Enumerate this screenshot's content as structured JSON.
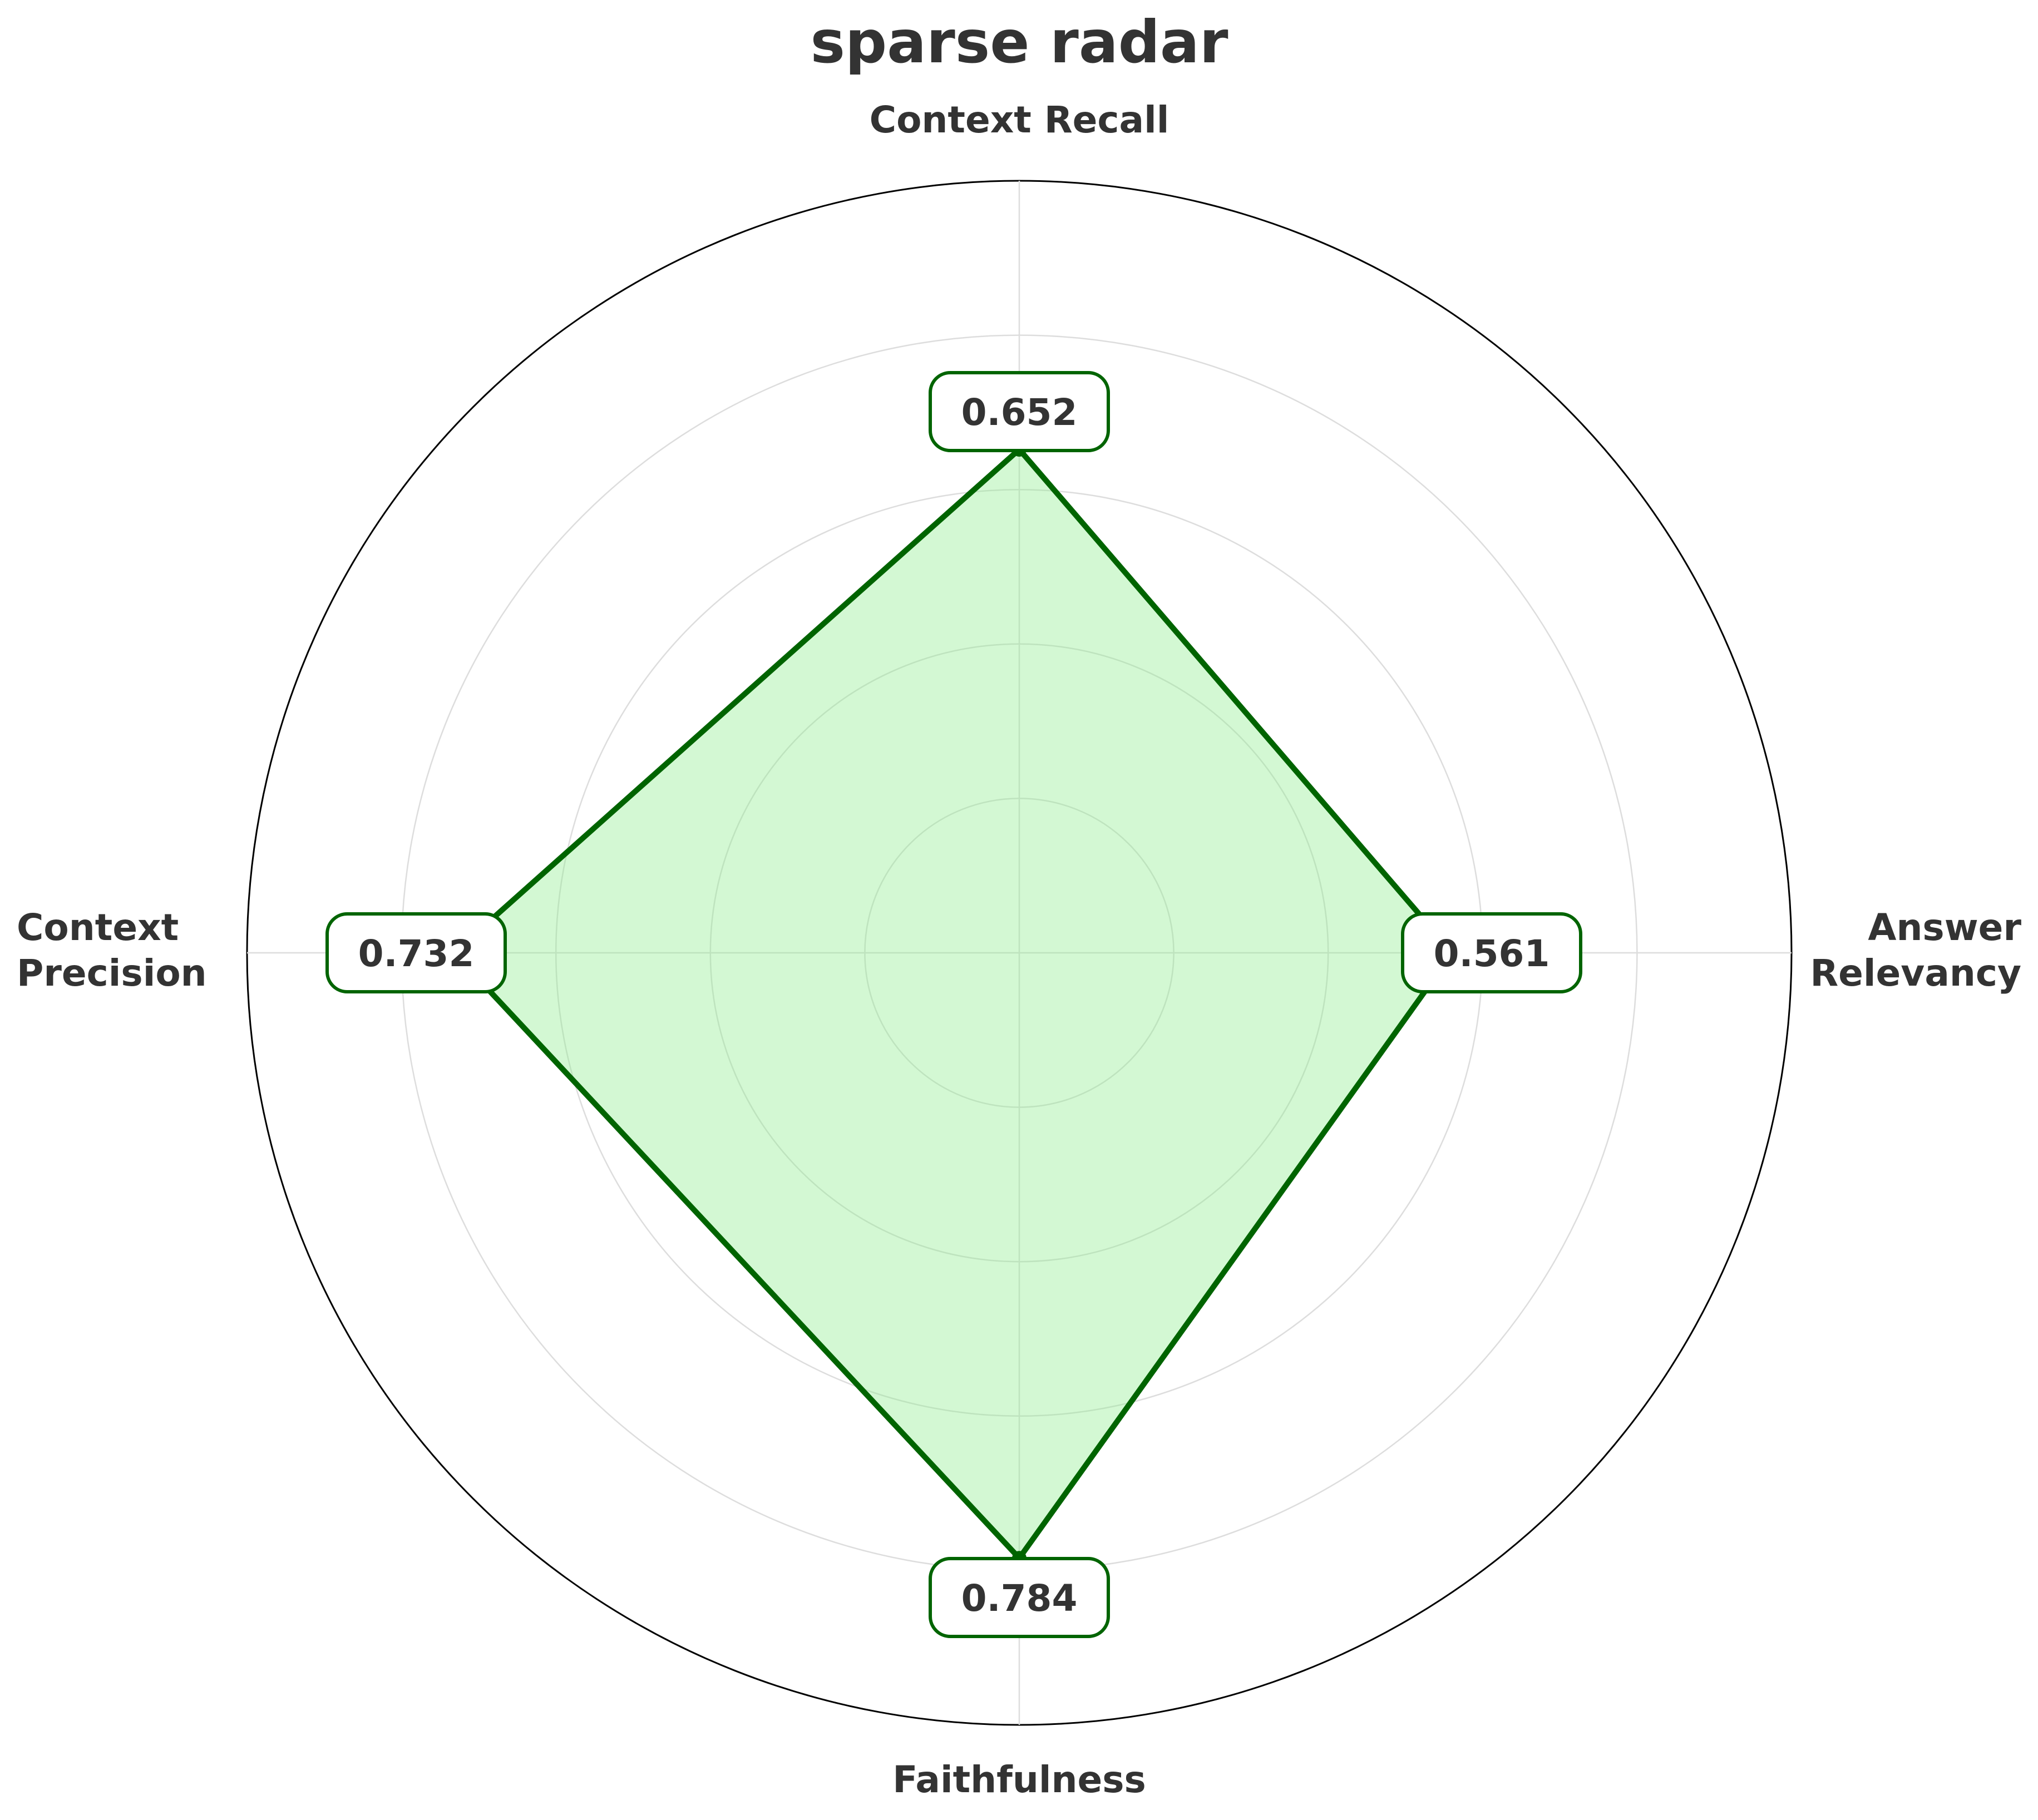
{
  "chart_data": {
    "type": "radar",
    "title": "sparse radar",
    "axes": [
      {
        "label_lines": [
          "Answer",
          "Relevancy"
        ],
        "value": 0.561,
        "value_label": "0.561"
      },
      {
        "label_lines": [
          "Context Recall"
        ],
        "value": 0.652,
        "value_label": "0.652"
      },
      {
        "label_lines": [
          "Context",
          "Precision"
        ],
        "value": 0.732,
        "value_label": "0.732"
      },
      {
        "label_lines": [
          "Faithfulness"
        ],
        "value": 0.784,
        "value_label": "0.784"
      }
    ],
    "rlim": [
      0,
      1
    ],
    "rings": [
      0.2,
      0.4,
      0.6,
      0.8,
      1.0
    ],
    "grid": true,
    "legend": "none"
  },
  "colors": {
    "line": "#006400",
    "fill": "#90ee90",
    "fill_opacity": 0.4,
    "grid": "#dddddd",
    "outer_ring": "#000000",
    "text": "#333333",
    "label_box_fill": "#ffffff"
  }
}
